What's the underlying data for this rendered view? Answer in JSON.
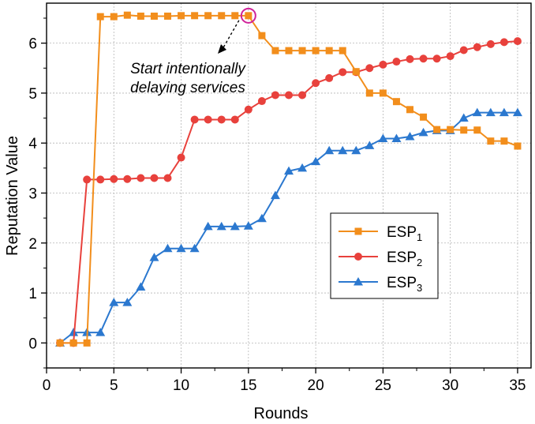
{
  "chart_data": {
    "type": "line",
    "xlabel": "Rounds",
    "ylabel": "Reputation Value",
    "xlim": [
      0,
      36
    ],
    "ylim": [
      -0.5,
      6.8
    ],
    "xticks": [
      0,
      5,
      10,
      15,
      20,
      25,
      30,
      35
    ],
    "yticks": [
      0,
      1,
      2,
      3,
      4,
      5,
      6
    ],
    "grid": true,
    "legend_position": "center-right",
    "x": [
      1,
      2,
      3,
      4,
      5,
      6,
      7,
      8,
      9,
      10,
      11,
      12,
      13,
      14,
      15,
      16,
      17,
      18,
      19,
      20,
      21,
      22,
      23,
      24,
      25,
      26,
      27,
      28,
      29,
      30,
      31,
      32,
      33,
      34,
      35
    ],
    "series": [
      {
        "name": "ESP",
        "subscript": "1",
        "color": "#f28e1c",
        "marker": "square",
        "values": [
          0.0,
          0.0,
          0.0,
          6.53,
          6.53,
          6.56,
          6.54,
          6.54,
          6.54,
          6.55,
          6.55,
          6.55,
          6.55,
          6.55,
          6.55,
          6.15,
          5.85,
          5.85,
          5.85,
          5.85,
          5.85,
          5.85,
          5.43,
          5.0,
          5.0,
          4.83,
          4.67,
          4.52,
          4.27,
          4.27,
          4.26,
          4.26,
          4.04,
          4.04,
          3.94
        ]
      },
      {
        "name": "ESP",
        "subscript": "2",
        "color": "#e8413c",
        "marker": "circle",
        "values": [
          0.0,
          0.0,
          3.27,
          3.27,
          3.28,
          3.28,
          3.3,
          3.3,
          3.3,
          3.71,
          4.47,
          4.47,
          4.47,
          4.47,
          4.67,
          4.84,
          4.96,
          4.96,
          4.96,
          5.2,
          5.3,
          5.42,
          5.42,
          5.5,
          5.57,
          5.63,
          5.68,
          5.69,
          5.69,
          5.74,
          5.86,
          5.92,
          5.98,
          6.02,
          6.04
        ]
      },
      {
        "name": "ESP",
        "subscript": "3",
        "color": "#2b78cf",
        "marker": "triangle",
        "values": [
          0.0,
          0.21,
          0.21,
          0.21,
          0.81,
          0.81,
          1.12,
          1.71,
          1.89,
          1.89,
          1.89,
          2.33,
          2.33,
          2.33,
          2.34,
          2.49,
          2.95,
          3.44,
          3.5,
          3.63,
          3.85,
          3.85,
          3.85,
          3.95,
          4.09,
          4.09,
          4.13,
          4.21,
          4.25,
          4.25,
          4.5,
          4.61,
          4.61,
          4.61,
          4.61
        ]
      }
    ],
    "annotation": {
      "line1": "Start intentionally",
      "line2": "delaying services",
      "target_x": 15,
      "target_y": 6.55,
      "highlight_color": "#d0239a"
    }
  }
}
